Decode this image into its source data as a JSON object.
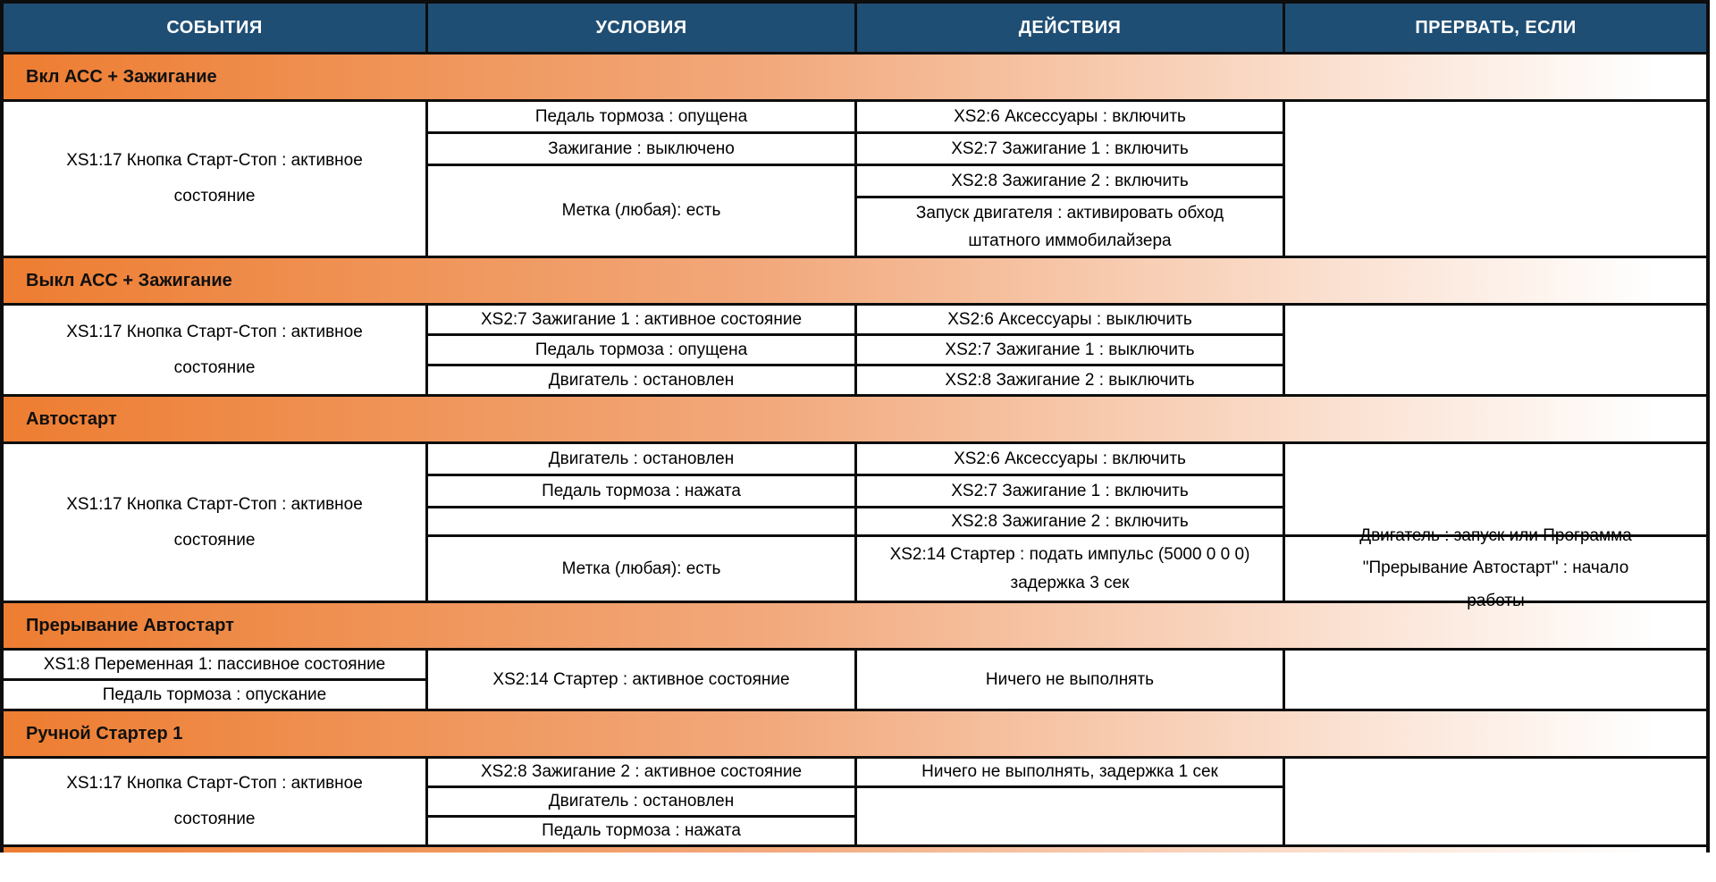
{
  "table": {
    "columns": [
      "СОБЫТИЯ",
      "УСЛОВИЯ",
      "ДЕЙСТВИЯ",
      "ПРЕРВАТЬ, ЕСЛИ"
    ],
    "colors": {
      "header_bg": "#1F4E74",
      "header_text": "#FFFFFF",
      "section_gradient_start": "#ED7D31",
      "section_gradient_end": "#FFFFFF",
      "border": "#0D0D0D"
    },
    "sections": [
      {
        "title": "Вкл АСС + Зажигание",
        "events": [
          "XS1:17 Кнопка Старт-Стоп : активное состояние"
        ],
        "conditions": [
          "Педаль тормоза : опущена",
          "Зажигание : выключено",
          "Метка (любая): есть"
        ],
        "actions": [
          "XS2:6 Аксессуары : включить",
          "XS2:7 Зажигание 1 : включить",
          "XS2:8 Зажигание 2 : включить",
          "Запуск двигателя : активировать обход штатного иммобилайзера"
        ],
        "interrupts": [
          ""
        ]
      },
      {
        "title": "Выкл АСС + Зажигание",
        "events": [
          "XS1:17 Кнопка Старт-Стоп : активное состояние"
        ],
        "conditions": [
          "XS2:7 Зажигание 1 : активное состояние",
          "Педаль тормоза : опущена",
          "Двигатель : остановлен"
        ],
        "actions": [
          "XS2:6 Аксессуары : выключить",
          "XS2:7 Зажигание 1 : выключить",
          "XS2:8 Зажигание 2 : выключить"
        ],
        "interrupts": [
          ""
        ]
      },
      {
        "title": "Автостарт",
        "events": [
          "XS1:17 Кнопка Старт-Стоп : активное состояние"
        ],
        "conditions": [
          "Двигатель : остановлен",
          "Педаль тормоза : нажата",
          "",
          "Метка (любая): есть"
        ],
        "actions": [
          "XS2:6 Аксессуары : включить",
          "XS2:7 Зажигание 1 : включить",
          "XS2:8 Зажигание 2 : включить",
          "XS2:14 Стартер : подать импульс (5000 0 0 0) задержка 3 сек"
        ],
        "interrupts": [
          "",
          "Двигатель : запуск или Программа \"Прерывание Автостарт\" : начало работы"
        ]
      },
      {
        "title": "Прерывание Автостарт",
        "events": [
          "XS1:8 Переменная 1: пассивное состояние",
          "Педаль тормоза : опускание"
        ],
        "conditions": [
          "XS2:14 Стартер : активное состояние"
        ],
        "actions": [
          "Ничего не выполнять"
        ],
        "interrupts": [
          ""
        ]
      },
      {
        "title": "Ручной Стартер 1",
        "events": [
          "XS1:17 Кнопка Старт-Стоп : активное состояние"
        ],
        "conditions": [
          "XS2:8 Зажигание 2 : активное состояние",
          "Двигатель : остановлен",
          "Педаль тормоза : нажата"
        ],
        "actions": [
          "Ничего не выполнять, задержка 1 сек",
          ""
        ],
        "interrupts": [
          ""
        ]
      }
    ]
  }
}
